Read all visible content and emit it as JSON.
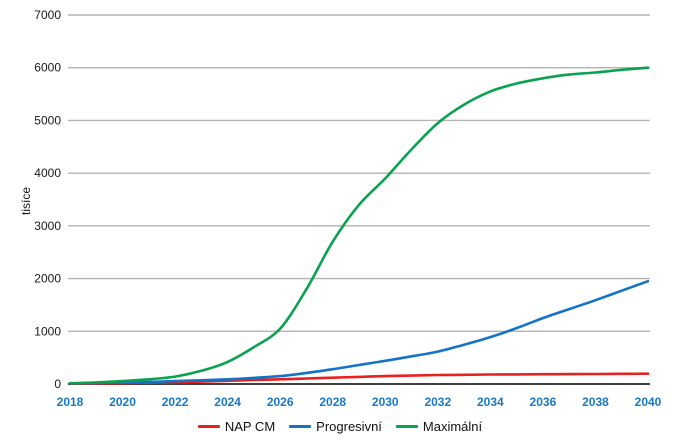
{
  "chart_data": {
    "type": "line",
    "title": "",
    "xlabel": "",
    "ylabel": "tisíce",
    "ylim": [
      0,
      7000
    ],
    "yticks": [
      0,
      1000,
      2000,
      3000,
      4000,
      5000,
      6000,
      7000
    ],
    "x_tick_labels": [
      "2018",
      "2020",
      "2022",
      "2024",
      "2026",
      "2028",
      "2030",
      "2032",
      "2034",
      "2036",
      "2038",
      "2040"
    ],
    "x_ticks": [
      2018,
      2020,
      2022,
      2024,
      2026,
      2028,
      2030,
      2032,
      2034,
      2036,
      2038,
      2040
    ],
    "x": [
      2018,
      2019,
      2020,
      2021,
      2022,
      2023,
      2024,
      2025,
      2026,
      2027,
      2028,
      2029,
      2030,
      2031,
      2032,
      2033,
      2034,
      2035,
      2036,
      2037,
      2038,
      2039,
      2040
    ],
    "grid": true,
    "legend_position": "bottom",
    "series": [
      {
        "name": "NAP CM",
        "color": "#e82120",
        "values": [
          5,
          10,
          15,
          25,
          35,
          45,
          60,
          75,
          90,
          105,
          120,
          135,
          150,
          160,
          170,
          175,
          180,
          183,
          185,
          188,
          190,
          193,
          195
        ]
      },
      {
        "name": "Progresivní",
        "color": "#1473c5",
        "values": [
          10,
          20,
          30,
          40,
          55,
          70,
          90,
          115,
          150,
          210,
          280,
          360,
          440,
          525,
          615,
          745,
          890,
          1060,
          1250,
          1420,
          1590,
          1770,
          1950
        ]
      },
      {
        "name": "Maximální",
        "color": "#0ba24f",
        "values": [
          15,
          30,
          55,
          90,
          140,
          250,
          420,
          700,
          1050,
          1800,
          2700,
          3400,
          3900,
          4450,
          4950,
          5300,
          5550,
          5700,
          5800,
          5870,
          5910,
          5960,
          6000
        ]
      }
    ]
  },
  "axis_style": {
    "x_label_color": "#1878c8",
    "y_label_color": "#1a1a1a",
    "grid_color": "#b3b3b3",
    "zero_line_color": "#404040"
  }
}
